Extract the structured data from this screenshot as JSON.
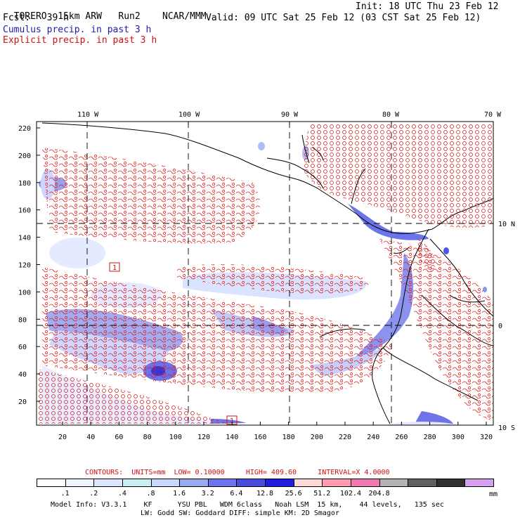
{
  "header": {
    "model": "TORERO",
    "grid": "15km ARW",
    "run": "Run2",
    "org": "NCAR/MMM",
    "init": "Init: 18 UTC Thu 23 Feb 12",
    "fcst_label": "Fcst:",
    "fcst_value": "39 h",
    "valid": "Valid: 09 UTC Sat 25 Feb 12 (03 CST Sat 25 Feb 12)"
  },
  "legend": {
    "cumulus": "Cumulus precip. in past 3 h",
    "explicit": "Explicit precip. in past 3 h"
  },
  "map": {
    "lon_labels": [
      "110 W",
      "100 W",
      "90 W",
      "80 W",
      "70 W"
    ],
    "lat_labels": [
      "10 N",
      "0",
      "10 S"
    ],
    "y_ticks": [
      "220",
      "200",
      "180",
      "160",
      "140",
      "120",
      "100",
      "80",
      "60",
      "40",
      "20"
    ],
    "x_ticks": [
      "20",
      "40",
      "60",
      "80",
      "100",
      "120",
      "140",
      "160",
      "180",
      "200",
      "220",
      "240",
      "260",
      "280",
      "300",
      "320"
    ],
    "box_label_1": "1",
    "box_label_2": "1"
  },
  "contours": {
    "label": "CONTOURS:",
    "units": "UNITS=mm",
    "low": "LOW= 0.10000",
    "high": "HIGH= 409.60",
    "interval": "INTERVAL=X 4.0000"
  },
  "colorbar": {
    "colors": [
      "#ffffff",
      "#f0f4ff",
      "#dde6ff",
      "#c8f0f0",
      "#c8d8ff",
      "#9aaaf0",
      "#6d74ec",
      "#4a4ce0",
      "#1e1edc",
      "#ffd8d8",
      "#ff9ab0",
      "#f07ab0",
      "#b4b4b4",
      "#606060",
      "#303030",
      "#d7a0f0"
    ],
    "ticks": [
      ".1",
      ".2",
      ".4",
      ".8",
      "1.6",
      "3.2",
      "6.4",
      "12.8",
      "25.6",
      "51.2",
      "102.4",
      "204.8"
    ],
    "unit": "mm"
  },
  "footer": {
    "line1": "Model Info: V3.3.1    KF      YSU PBL   WDM 6class   Noah LSM  15 km,    44 levels,   135 sec",
    "line2": "LW: Godd SW: Goddard DIFF: simple KM: 2D Smagor"
  }
}
